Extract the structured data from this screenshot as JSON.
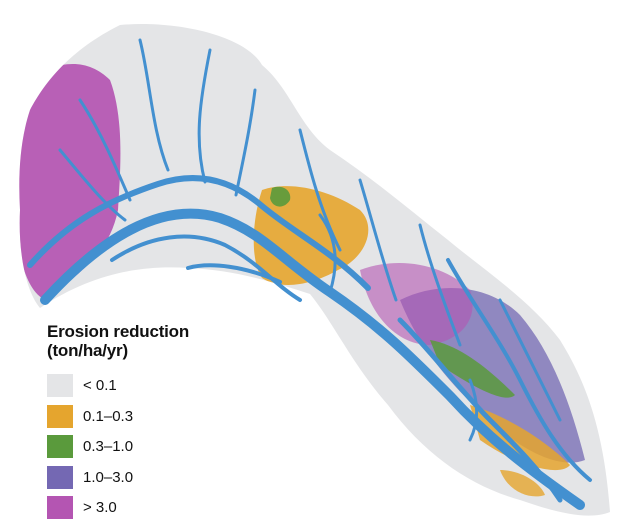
{
  "legend": {
    "title_line1": "Erosion reduction",
    "title_line2": "(ton/ha/yr)",
    "items": [
      {
        "label": "< 0.1",
        "color": "#e4e5e7"
      },
      {
        "label": "0.1–0.3",
        "color": "#e5a52e"
      },
      {
        "label": "0.3–1.0",
        "color": "#5a9a3c"
      },
      {
        "label": "1.0–3.0",
        "color": "#7468b3"
      },
      {
        "label": "> 3.0",
        "color": "#b455b2"
      }
    ]
  },
  "map_colors": {
    "river": "#4390d0",
    "background": "#ffffff"
  }
}
